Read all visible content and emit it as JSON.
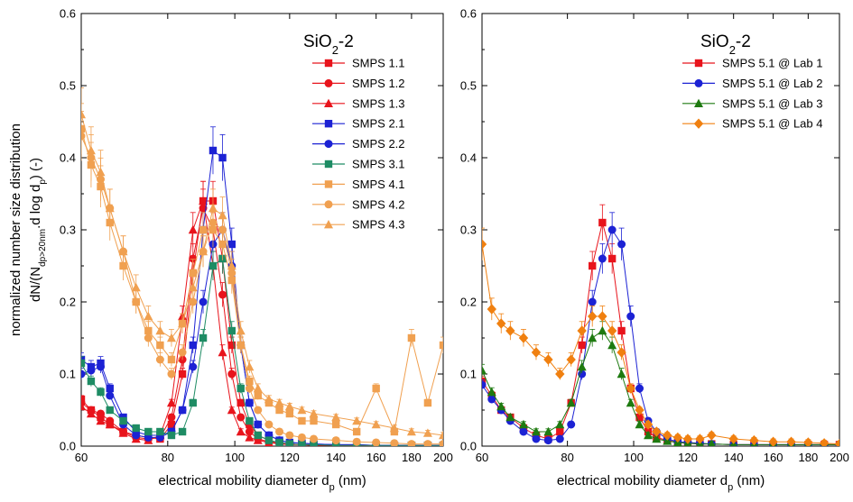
{
  "chart_data": [
    {
      "type": "line",
      "title_main": "SiO",
      "title_sub": "2",
      "title_suffix": "-2",
      "xlabel_main": "electrical mobility diameter d",
      "xlabel_sub": "p",
      "xlabel_suffix": " (nm)",
      "ylabel_line1": "normalized number size distribution",
      "ylabel_line2_parts": [
        "dN/(N",
        "dp>20nm",
        ".d log d",
        "p",
        ") (-)"
      ],
      "xscale": "log",
      "xlim": [
        60,
        200
      ],
      "ylim": [
        0,
        0.6
      ],
      "xticks": [
        60,
        80,
        100,
        120,
        140,
        160,
        180,
        200
      ],
      "yticks": [
        "0.0",
        "0.1",
        "0.2",
        "0.3",
        "0.4",
        "0.5",
        "0.6"
      ],
      "legend_position": "top-right",
      "series": [
        {
          "name": "SMPS 1.1",
          "color": "#e8141c",
          "marker": "square",
          "x": [
            60,
            62,
            64,
            66,
            69,
            72,
            75,
            78,
            81,
            84,
            87,
            90,
            93,
            96,
            99,
            102,
            105,
            108,
            112,
            116,
            120,
            125,
            130,
            140,
            150,
            160,
            170,
            180,
            190,
            200
          ],
          "y": [
            0.065,
            0.05,
            0.04,
            0.03,
            0.02,
            0.015,
            0.012,
            0.01,
            0.03,
            0.1,
            0.24,
            0.34,
            0.34,
            0.26,
            0.14,
            0.06,
            0.03,
            0.015,
            0.008,
            0.005,
            0.003,
            0.002,
            0.002,
            0.001,
            0.001,
            0.001,
            0.001,
            0.001,
            0.001,
            0.001
          ]
        },
        {
          "name": "SMPS 1.2",
          "color": "#e8141c",
          "marker": "circle",
          "x": [
            60,
            62,
            64,
            66,
            69,
            72,
            75,
            78,
            81,
            84,
            87,
            90,
            93,
            96,
            99,
            102,
            105,
            108,
            112,
            116,
            120,
            125,
            130,
            140,
            150,
            160,
            170,
            180,
            190,
            200
          ],
          "y": [
            0.06,
            0.05,
            0.045,
            0.035,
            0.02,
            0.012,
            0.01,
            0.012,
            0.04,
            0.12,
            0.26,
            0.33,
            0.3,
            0.21,
            0.1,
            0.04,
            0.02,
            0.01,
            0.006,
            0.004,
            0.003,
            0.002,
            0.002,
            0.001,
            0.001,
            0.001,
            0.001,
            0.001,
            0.001,
            0.001
          ]
        },
        {
          "name": "SMPS 1.3",
          "color": "#e8141c",
          "marker": "triangle",
          "x": [
            60,
            62,
            64,
            66,
            69,
            72,
            75,
            78,
            81,
            84,
            87,
            90,
            93,
            96,
            99,
            102,
            105,
            108,
            112,
            116,
            120,
            125,
            130,
            140,
            150,
            160,
            170,
            180,
            190,
            200
          ],
          "y": [
            0.055,
            0.045,
            0.035,
            0.03,
            0.018,
            0.01,
            0.008,
            0.015,
            0.06,
            0.18,
            0.3,
            0.34,
            0.25,
            0.13,
            0.05,
            0.02,
            0.012,
            0.008,
            0.005,
            0.003,
            0.002,
            0.002,
            0.001,
            0.001,
            0.001,
            0.001,
            0.001,
            0.001,
            0.001,
            0.001
          ]
        },
        {
          "name": "SMPS 2.1",
          "color": "#1c22d4",
          "marker": "square",
          "x": [
            60,
            62,
            64,
            66,
            69,
            72,
            75,
            78,
            81,
            84,
            87,
            90,
            93,
            96,
            99,
            102,
            105,
            108,
            112,
            116,
            120,
            125,
            130,
            140,
            150,
            160,
            170,
            180,
            190,
            200
          ],
          "y": [
            0.12,
            0.11,
            0.115,
            0.08,
            0.04,
            0.02,
            0.015,
            0.015,
            0.02,
            0.05,
            0.14,
            0.3,
            0.41,
            0.4,
            0.28,
            0.14,
            0.06,
            0.03,
            0.015,
            0.008,
            0.005,
            0.004,
            0.003,
            0.002,
            0.002,
            0.001,
            0.001,
            0.001,
            0.001,
            0.001
          ]
        },
        {
          "name": "SMPS 2.2",
          "color": "#1c22d4",
          "marker": "circle",
          "x": [
            60,
            62,
            64,
            66,
            69,
            72,
            75,
            78,
            81,
            84,
            87,
            90,
            93,
            96,
            99,
            102,
            105,
            108,
            112,
            116,
            120,
            125,
            130,
            140,
            150,
            160,
            170,
            180,
            190,
            200
          ],
          "y": [
            0.1,
            0.105,
            0.11,
            0.07,
            0.03,
            0.015,
            0.012,
            0.012,
            0.02,
            0.05,
            0.11,
            0.2,
            0.28,
            0.3,
            0.25,
            0.14,
            0.06,
            0.03,
            0.015,
            0.008,
            0.005,
            0.004,
            0.003,
            0.002,
            0.002,
            0.001,
            0.001,
            0.001,
            0.001,
            0.001
          ]
        },
        {
          "name": "SMPS 3.1",
          "color": "#1e8c64",
          "marker": "square",
          "x": [
            60,
            62,
            64,
            66,
            69,
            72,
            75,
            78,
            81,
            84,
            87,
            90,
            93,
            96,
            99,
            102,
            105,
            108,
            112,
            116,
            120,
            125,
            130,
            140,
            150,
            160,
            170,
            180,
            190,
            200
          ],
          "y": [
            0.115,
            0.09,
            0.075,
            0.05,
            0.035,
            0.025,
            0.02,
            0.02,
            0.015,
            0.02,
            0.06,
            0.15,
            0.25,
            0.26,
            0.16,
            0.08,
            0.035,
            0.015,
            0.008,
            0.005,
            0.003,
            0.002,
            0.002,
            0.001,
            0.001,
            0.001,
            0.001,
            0.001,
            0.001,
            0.001
          ]
        },
        {
          "name": "SMPS 4.1",
          "color": "#f0a050",
          "marker": "square",
          "x": [
            60,
            62,
            64,
            66,
            69,
            72,
            75,
            78,
            81,
            84,
            87,
            90,
            93,
            96,
            99,
            102,
            105,
            108,
            112,
            116,
            120,
            125,
            130,
            140,
            150,
            160,
            170,
            180,
            190,
            200
          ],
          "y": [
            0.44,
            0.39,
            0.36,
            0.31,
            0.25,
            0.2,
            0.16,
            0.14,
            0.12,
            0.17,
            0.24,
            0.3,
            0.3,
            0.28,
            0.23,
            0.14,
            0.09,
            0.07,
            0.06,
            0.05,
            0.045,
            0.035,
            0.035,
            0.03,
            0.02,
            0.08,
            0.02,
            0.15,
            0.06,
            0.14
          ]
        },
        {
          "name": "SMPS 4.2",
          "color": "#f0a050",
          "marker": "circle",
          "x": [
            60,
            62,
            64,
            66,
            69,
            72,
            75,
            78,
            81,
            84,
            87,
            90,
            93,
            96,
            99,
            102,
            105,
            108,
            112,
            116,
            120,
            125,
            130,
            140,
            150,
            160,
            170,
            180,
            190,
            200
          ],
          "y": [
            0.43,
            0.4,
            0.37,
            0.33,
            0.27,
            0.2,
            0.15,
            0.12,
            0.1,
            0.13,
            0.2,
            0.27,
            0.31,
            0.3,
            0.24,
            0.14,
            0.08,
            0.05,
            0.03,
            0.02,
            0.015,
            0.012,
            0.01,
            0.008,
            0.006,
            0.005,
            0.004,
            0.003,
            0.003,
            0.003
          ]
        },
        {
          "name": "SMPS 4.3",
          "color": "#f0a050",
          "marker": "triangle",
          "x": [
            60,
            62,
            64,
            66,
            69,
            72,
            75,
            78,
            81,
            84,
            87,
            90,
            93,
            96,
            99,
            102,
            105,
            108,
            112,
            116,
            120,
            125,
            130,
            140,
            150,
            160,
            170,
            180,
            190,
            200
          ],
          "y": [
            0.46,
            0.41,
            0.38,
            0.33,
            0.27,
            0.22,
            0.18,
            0.16,
            0.15,
            0.17,
            0.22,
            0.27,
            0.33,
            0.32,
            0.25,
            0.16,
            0.11,
            0.08,
            0.065,
            0.06,
            0.055,
            0.05,
            0.045,
            0.04,
            0.035,
            0.03,
            0.025,
            0.02,
            0.018,
            0.015
          ]
        }
      ]
    },
    {
      "type": "line",
      "title_main": "SiO",
      "title_sub": "2",
      "title_suffix": "-2",
      "xlabel_main": "electrical mobility diameter d",
      "xlabel_sub": "p",
      "xlabel_suffix": " (nm)",
      "xscale": "log",
      "xlim": [
        60,
        200
      ],
      "ylim": [
        0,
        0.6
      ],
      "xticks": [
        60,
        80,
        100,
        120,
        140,
        160,
        180,
        200
      ],
      "yticks": [
        "0.0",
        "0.1",
        "0.2",
        "0.3",
        "0.4",
        "0.5",
        "0.6"
      ],
      "legend_position": "top-right",
      "series": [
        {
          "name": "SMPS 5.1 @ Lab 1",
          "color": "#e8141c",
          "marker": "square",
          "x": [
            60,
            62,
            64,
            66,
            69,
            72,
            75,
            78,
            81,
            84,
            87,
            90,
            93,
            96,
            99,
            102,
            105,
            108,
            112,
            116,
            120,
            125,
            130,
            140,
            150,
            160,
            170,
            180,
            190,
            200
          ],
          "y": [
            0.09,
            0.07,
            0.05,
            0.04,
            0.025,
            0.015,
            0.01,
            0.02,
            0.06,
            0.14,
            0.25,
            0.31,
            0.26,
            0.16,
            0.08,
            0.04,
            0.02,
            0.012,
            0.008,
            0.005,
            0.004,
            0.003,
            0.003,
            0.002,
            0.002,
            0.002,
            0.002,
            0.002,
            0.002,
            0.002
          ]
        },
        {
          "name": "SMPS 5.1 @ Lab 2",
          "color": "#1c22d4",
          "marker": "circle",
          "x": [
            60,
            62,
            64,
            66,
            69,
            72,
            75,
            78,
            81,
            84,
            87,
            90,
            93,
            96,
            99,
            102,
            105,
            108,
            112,
            116,
            120,
            125,
            130,
            140,
            150,
            160,
            170,
            180,
            190,
            200
          ],
          "y": [
            0.085,
            0.065,
            0.05,
            0.035,
            0.02,
            0.01,
            0.008,
            0.01,
            0.03,
            0.1,
            0.2,
            0.26,
            0.3,
            0.28,
            0.18,
            0.08,
            0.035,
            0.02,
            0.01,
            0.006,
            0.005,
            0.004,
            0.003,
            0.002,
            0.002,
            0.002,
            0.002,
            0.002,
            0.002,
            0.002
          ]
        },
        {
          "name": "SMPS 5.1 @ Lab 3",
          "color": "#1e7a10",
          "marker": "triangle",
          "x": [
            60,
            62,
            64,
            66,
            69,
            72,
            75,
            78,
            81,
            84,
            87,
            90,
            93,
            96,
            99,
            102,
            105,
            108,
            112,
            116,
            120,
            125,
            130,
            140,
            150,
            160,
            170,
            180,
            190,
            200
          ],
          "y": [
            0.105,
            0.075,
            0.055,
            0.04,
            0.03,
            0.02,
            0.02,
            0.03,
            0.06,
            0.11,
            0.15,
            0.16,
            0.14,
            0.1,
            0.06,
            0.03,
            0.015,
            0.01,
            0.007,
            0.005,
            0.004,
            0.003,
            0.003,
            0.002,
            0.002,
            0.002,
            0.002,
            0.002,
            0.002,
            0.002
          ]
        },
        {
          "name": "SMPS 5.1 @ Lab 4",
          "color": "#f08010",
          "marker": "diamond",
          "x": [
            60,
            62,
            64,
            66,
            69,
            72,
            75,
            78,
            81,
            84,
            87,
            90,
            93,
            96,
            99,
            102,
            105,
            108,
            112,
            116,
            120,
            125,
            130,
            140,
            150,
            160,
            170,
            180,
            190,
            200
          ],
          "y": [
            0.28,
            0.19,
            0.17,
            0.16,
            0.15,
            0.13,
            0.12,
            0.1,
            0.12,
            0.16,
            0.18,
            0.18,
            0.16,
            0.13,
            0.08,
            0.05,
            0.03,
            0.02,
            0.015,
            0.012,
            0.01,
            0.01,
            0.015,
            0.01,
            0.008,
            0.006,
            0.006,
            0.005,
            0.004,
            0.003
          ]
        }
      ]
    }
  ]
}
